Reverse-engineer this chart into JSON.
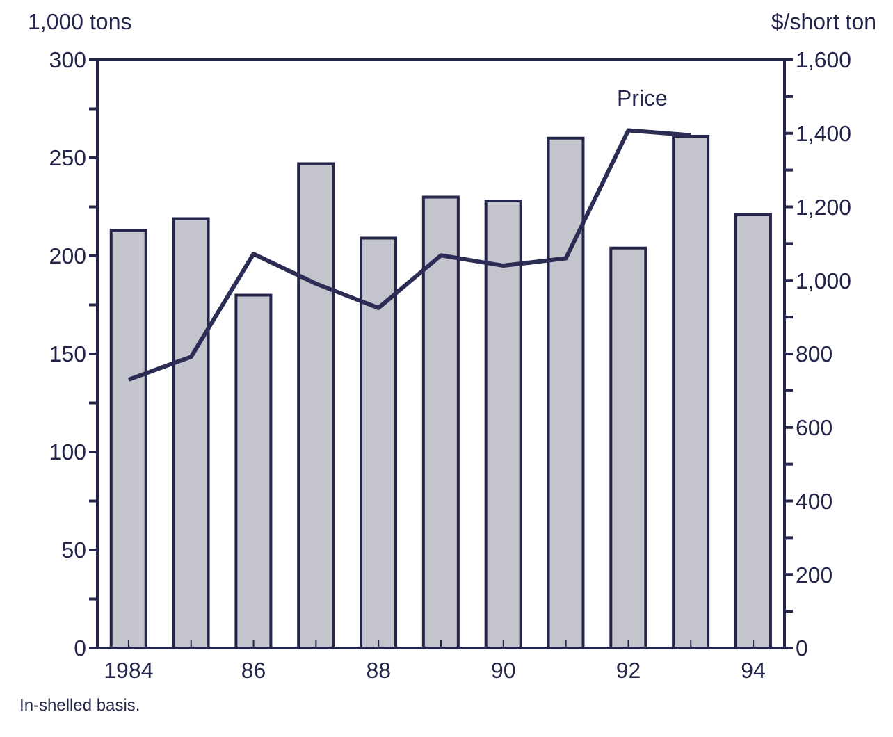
{
  "chart_data": {
    "type": "bar",
    "ylabel": "1,000 tons",
    "y2label": "$/short ton",
    "categories": [
      "1984",
      null,
      "86",
      null,
      "88",
      null,
      "90",
      null,
      "92",
      null,
      "94"
    ],
    "series": [
      {
        "color": "#c4c4cc",
        "values": [
          213,
          219,
          180,
          247,
          209,
          230,
          228,
          260,
          204,
          261,
          221
        ]
      },
      {
        "type": "line",
        "name": "Price",
        "axis": "y2",
        "color": "#2b2d55",
        "values": [
          730,
          792,
          1072,
          991,
          925,
          1068,
          1040,
          1060,
          1408,
          1395,
          null
        ]
      }
    ],
    "ylim": [
      0,
      300
    ],
    "yticks": [
      0,
      {
        "value": 25,
        "label": null
      },
      50,
      {
        "value": 75,
        "label": null
      },
      100,
      {
        "value": 125,
        "label": null
      },
      150,
      {
        "value": 175,
        "label": null
      },
      200,
      {
        "value": 225,
        "label": null
      },
      250,
      {
        "value": 275,
        "label": null
      },
      300
    ],
    "y2lim": [
      0,
      1600
    ],
    "y2ticks": [
      0,
      {
        "value": 100,
        "label": null
      },
      {
        "value": 200,
        "label": "200"
      },
      {
        "value": 300,
        "label": null
      },
      {
        "value": 400,
        "label": "400"
      },
      {
        "value": 500,
        "label": null
      },
      {
        "value": 600,
        "label": "600"
      },
      {
        "value": 700,
        "label": null
      },
      {
        "value": 800,
        "label": "800"
      },
      {
        "value": 900,
        "label": null
      },
      {
        "value": 1000,
        "label": "1,000"
      },
      {
        "value": 1100,
        "label": null
      },
      {
        "value": 1200,
        "label": "1,200"
      },
      {
        "value": 1300,
        "label": null
      },
      {
        "value": 1400,
        "label": "1,400"
      },
      {
        "value": 1500,
        "label": null
      },
      {
        "value": 1600,
        "label": "1,600"
      }
    ],
    "grid": false,
    "legend": false,
    "marker": "none",
    "line_style": "solid",
    "annotations": [
      "In-shelled basis."
    ]
  }
}
